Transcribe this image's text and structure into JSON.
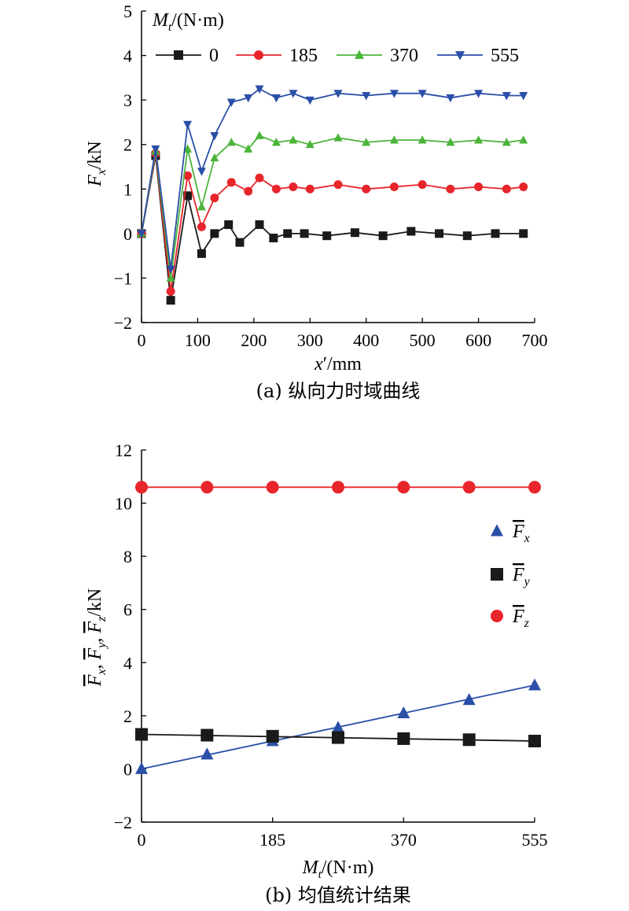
{
  "charts": {
    "a": {
      "caption": "(a) 纵向力时域曲线",
      "xlabel": "x′/mm",
      "ylabel": "Fx/kN",
      "legend_title": "Mt/(N·m)"
    },
    "b": {
      "caption": "(b) 均值统计结果",
      "xlabel": "Mt/(N·m)",
      "ylabel": "Fx, Fy, Fz/kN"
    }
  },
  "chart_data": [
    {
      "type": "line",
      "title": "(a) 纵向力时域曲线",
      "xlabel": "x′/mm",
      "ylabel": "Fx/kN",
      "xlim": [
        0,
        700
      ],
      "ylim": [
        -2,
        5
      ],
      "xticks": [
        0,
        100,
        200,
        300,
        400,
        500,
        600,
        700
      ],
      "yticks": [
        -2,
        -1,
        0,
        1,
        2,
        3,
        4,
        5
      ],
      "legend": {
        "title": "Mt/(N·m)",
        "placement": "top"
      },
      "grid": false,
      "series": [
        {
          "name": "0",
          "color": "#1a1a1a",
          "marker": "square",
          "x": [
            0,
            25,
            52,
            82,
            107,
            130,
            155,
            175,
            210,
            235,
            260,
            290,
            330,
            380,
            430,
            480,
            530,
            580,
            630,
            680
          ],
          "y": [
            0,
            1.75,
            -1.5,
            0.85,
            -0.45,
            0,
            0.2,
            -0.2,
            0.2,
            -0.1,
            0,
            0.0,
            -0.05,
            0.02,
            -0.05,
            0.05,
            0.0,
            -0.05,
            0.0,
            0.0
          ]
        },
        {
          "name": "185",
          "color": "#e8252b",
          "marker": "circle",
          "x": [
            0,
            25,
            52,
            82,
            107,
            130,
            160,
            190,
            210,
            240,
            270,
            300,
            350,
            400,
            450,
            500,
            550,
            600,
            650,
            680
          ],
          "y": [
            0,
            1.8,
            -1.3,
            1.3,
            0.15,
            0.8,
            1.15,
            0.95,
            1.25,
            1.0,
            1.05,
            1.0,
            1.1,
            1.0,
            1.05,
            1.1,
            1.0,
            1.05,
            1.0,
            1.05
          ]
        },
        {
          "name": "370",
          "color": "#4bb43a",
          "marker": "triangle-up",
          "x": [
            0,
            25,
            52,
            82,
            107,
            130,
            160,
            190,
            210,
            240,
            270,
            300,
            350,
            400,
            450,
            500,
            550,
            600,
            650,
            680
          ],
          "y": [
            0,
            1.85,
            -1.0,
            1.9,
            0.6,
            1.7,
            2.05,
            1.9,
            2.2,
            2.05,
            2.1,
            2.0,
            2.15,
            2.05,
            2.1,
            2.1,
            2.05,
            2.1,
            2.05,
            2.1
          ]
        },
        {
          "name": "555",
          "color": "#2a4fa8",
          "marker": "triangle-down",
          "x": [
            0,
            25,
            52,
            82,
            107,
            130,
            160,
            190,
            210,
            240,
            270,
            300,
            350,
            400,
            450,
            500,
            550,
            600,
            650,
            680
          ],
          "y": [
            0,
            1.9,
            -0.8,
            2.45,
            1.4,
            2.2,
            2.95,
            3.05,
            3.25,
            3.05,
            3.15,
            3.0,
            3.15,
            3.1,
            3.15,
            3.15,
            3.05,
            3.15,
            3.1,
            3.1
          ]
        }
      ]
    },
    {
      "type": "scatter",
      "title": "(b) 均值统计结果",
      "xlabel": "Mt/(N·m)",
      "ylabel": "Fx, Fy, Fz/kN",
      "xlim": [
        0,
        555
      ],
      "ylim": [
        -2,
        12
      ],
      "xticks": [
        0,
        185,
        370,
        555
      ],
      "yticks": [
        -2,
        0,
        2,
        4,
        6,
        8,
        10,
        12
      ],
      "legend": {
        "placement": "right"
      },
      "grid": false,
      "series": [
        {
          "name": "Fx",
          "color": "#2a4fa8",
          "marker": "triangle-up",
          "x": [
            0,
            92.5,
            185,
            277.5,
            370,
            462.5,
            555
          ],
          "y": [
            0.0,
            0.55,
            1.05,
            1.55,
            2.1,
            2.6,
            3.15
          ],
          "fit": [
            0.0,
            3.15
          ]
        },
        {
          "name": "Fy",
          "color": "#1a1a1a",
          "marker": "square",
          "x": [
            0,
            92.5,
            185,
            277.5,
            370,
            462.5,
            555
          ],
          "y": [
            1.3,
            1.27,
            1.23,
            1.18,
            1.14,
            1.1,
            1.05
          ],
          "fit": [
            1.3,
            1.05
          ]
        },
        {
          "name": "Fz",
          "color": "#e8252b",
          "marker": "circle",
          "x": [
            0,
            92.5,
            185,
            277.5,
            370,
            462.5,
            555
          ],
          "y": [
            10.6,
            10.6,
            10.6,
            10.6,
            10.6,
            10.6,
            10.6
          ],
          "fit": [
            10.6,
            10.6
          ]
        }
      ]
    }
  ]
}
